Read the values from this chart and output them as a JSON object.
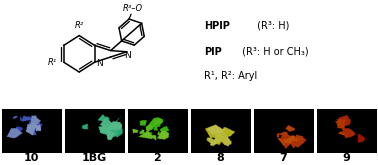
{
  "bg_color": "#000000",
  "fig_bg": "#ffffff",
  "panels": [
    {
      "label": "10",
      "base": [
        0.1,
        0.2,
        0.9
      ],
      "bright": [
        0.7,
        0.8,
        1.0
      ]
    },
    {
      "label": "1BG",
      "base": [
        0.0,
        0.8,
        0.5
      ],
      "bright": [
        0.5,
        1.0,
        0.75
      ]
    },
    {
      "label": "2",
      "base": [
        0.1,
        0.9,
        0.0
      ],
      "bright": [
        0.6,
        1.0,
        0.2
      ]
    },
    {
      "label": "8",
      "base": [
        0.9,
        0.9,
        0.0
      ],
      "bright": [
        1.0,
        1.0,
        0.4
      ]
    },
    {
      "label": "7",
      "base": [
        0.85,
        0.15,
        0.0
      ],
      "bright": [
        1.0,
        0.45,
        0.05
      ]
    },
    {
      "label": "9",
      "base": [
        0.75,
        0.05,
        0.0
      ],
      "bright": [
        0.95,
        0.3,
        0.0
      ]
    }
  ],
  "label_fontsize": 8.0,
  "text_fontsize": 7.0
}
